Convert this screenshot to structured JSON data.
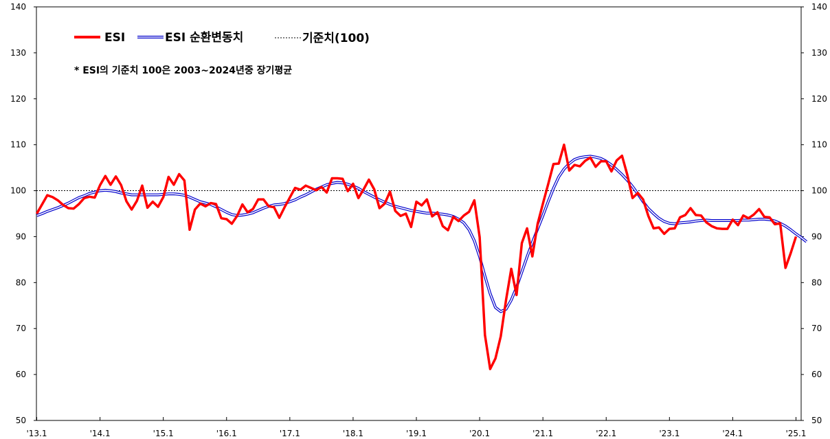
{
  "chart_data": {
    "type": "line",
    "ylim": [
      50,
      140
    ],
    "y_ticks": [
      50,
      60,
      70,
      80,
      90,
      100,
      110,
      120,
      130,
      140
    ],
    "x_ticks": [
      {
        "label": "'13.1",
        "index": 0
      },
      {
        "label": "'14.1",
        "index": 12
      },
      {
        "label": "'15.1",
        "index": 24
      },
      {
        "label": "'16.1",
        "index": 36
      },
      {
        "label": "'17.1",
        "index": 48
      },
      {
        "label": "'18.1",
        "index": 60
      },
      {
        "label": "'19.1",
        "index": 72
      },
      {
        "label": "'20.1",
        "index": 84
      },
      {
        "label": "'21.1",
        "index": 96
      },
      {
        "label": "'22.1",
        "index": 108
      },
      {
        "label": "'23.1",
        "index": 120
      },
      {
        "label": "'24.1",
        "index": 132
      },
      {
        "label": "'25.1",
        "index": 144
      }
    ],
    "n_points": 145,
    "reference_line": {
      "value": 100,
      "name": "기준치(100)"
    },
    "note": "* ESI의 기준치 100은 2003~2024년중 장기평균",
    "legend_position": "top-left",
    "grid": false,
    "series": [
      {
        "name": "ESI",
        "color": "#ff0000",
        "values": [
          95.0,
          97.0,
          99.0,
          98.6,
          97.9,
          96.9,
          96.2,
          96.1,
          97.1,
          98.4,
          98.7,
          98.5,
          101.2,
          103.2,
          101.3,
          103.1,
          101.2,
          97.7,
          95.9,
          97.8,
          101.1,
          96.3,
          97.6,
          96.5,
          98.6,
          103.0,
          101.3,
          103.6,
          102.2,
          91.5,
          95.9,
          97.2,
          96.6,
          97.3,
          97.1,
          94.0,
          93.8,
          92.8,
          94.5,
          97.0,
          95.3,
          96.0,
          98.1,
          98.1,
          96.6,
          96.4,
          94.1,
          96.4,
          98.5,
          100.6,
          100.2,
          101.1,
          100.6,
          100.1,
          100.8,
          99.6,
          102.7,
          102.7,
          102.6,
          99.9,
          101.5,
          98.4,
          100.3,
          102.4,
          100.3,
          96.2,
          97.2,
          99.8,
          95.6,
          94.5,
          95.0,
          92.1,
          97.6,
          96.8,
          98.1,
          94.4,
          95.3,
          92.3,
          91.4,
          94.3,
          93.4,
          94.6,
          95.4,
          97.9,
          89.9,
          68.6,
          61.2,
          63.5,
          68.3,
          76.2,
          83.0,
          77.3,
          88.6,
          91.8,
          85.7,
          92.8,
          97.2,
          101.4,
          105.8,
          105.9,
          110.0,
          104.4,
          105.6,
          105.3,
          106.5,
          107.2,
          105.2,
          106.4,
          106.4,
          104.2,
          106.6,
          107.6,
          103.5,
          98.4,
          99.5,
          98.1,
          94.5,
          91.8,
          92.0,
          90.6,
          91.7,
          91.8,
          94.2,
          94.7,
          96.2,
          94.7,
          94.6,
          93.1,
          92.3,
          91.8,
          91.7,
          91.7,
          93.7,
          92.5,
          94.6,
          94.0,
          94.8,
          96.0,
          94.3,
          94.2,
          92.7,
          92.9,
          83.2,
          86.4,
          90.0
        ]
      },
      {
        "name": "ESI 순환변동치",
        "color": "#0000cc",
        "values": [
          94.6,
          95.0,
          95.5,
          95.9,
          96.3,
          96.8,
          97.3,
          97.9,
          98.5,
          98.9,
          99.4,
          99.7,
          100.0,
          100.1,
          100.0,
          99.8,
          99.5,
          99.3,
          99.1,
          99.1,
          99.1,
          99.1,
          99.1,
          99.1,
          99.2,
          99.3,
          99.3,
          99.2,
          99.0,
          98.6,
          98.1,
          97.6,
          97.3,
          97.0,
          96.5,
          95.9,
          95.3,
          94.8,
          94.6,
          94.7,
          94.9,
          95.2,
          95.7,
          96.2,
          96.6,
          96.9,
          97.0,
          97.2,
          97.6,
          98.0,
          98.6,
          99.1,
          99.7,
          100.3,
          100.8,
          101.3,
          101.6,
          101.8,
          101.7,
          101.4,
          101.0,
          100.5,
          99.8,
          99.2,
          98.6,
          98.0,
          97.5,
          97.0,
          96.6,
          96.3,
          96.0,
          95.7,
          95.5,
          95.3,
          95.1,
          95.1,
          95.0,
          94.9,
          94.7,
          94.4,
          93.8,
          93.0,
          91.5,
          89.1,
          85.6,
          81.4,
          77.6,
          74.6,
          73.7,
          74.2,
          76.2,
          79.0,
          82.3,
          85.6,
          88.7,
          91.7,
          94.6,
          97.6,
          100.5,
          103.0,
          104.7,
          105.9,
          106.8,
          107.2,
          107.4,
          107.5,
          107.3,
          107.0,
          106.4,
          105.6,
          104.6,
          103.5,
          102.3,
          100.9,
          99.3,
          97.6,
          96.1,
          95.0,
          94.0,
          93.3,
          92.9,
          92.8,
          93.0,
          93.1,
          93.2,
          93.4,
          93.5,
          93.6,
          93.5,
          93.5,
          93.5,
          93.5,
          93.5,
          93.5,
          93.6,
          93.6,
          93.7,
          93.8,
          93.8,
          93.7,
          93.4,
          92.9,
          92.3,
          91.5,
          90.6,
          89.8,
          88.9
        ]
      }
    ]
  },
  "legend": {
    "esi_label": "ESI",
    "cyclical_label": "ESI 순환변동치",
    "reference_label": "기준치(100)"
  },
  "colors": {
    "esi": "#ff0000",
    "cyclical": "#0000cc",
    "axis": "#000000"
  }
}
